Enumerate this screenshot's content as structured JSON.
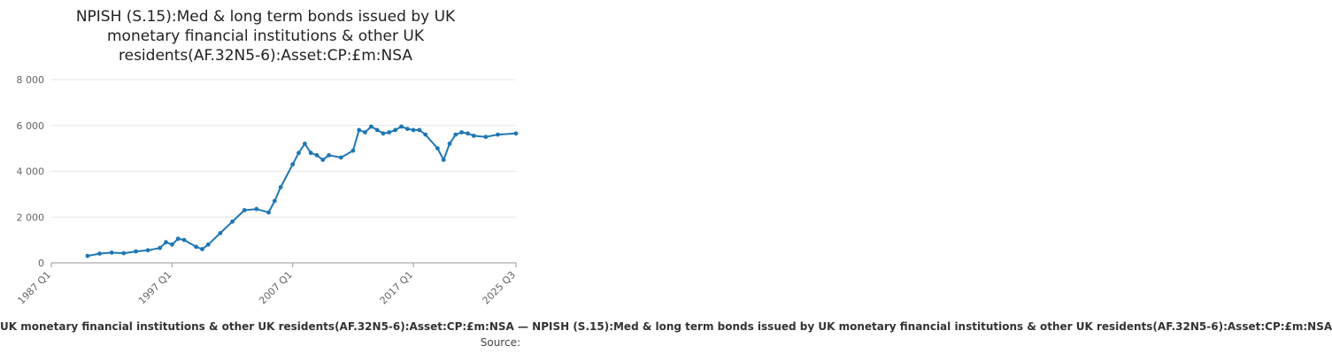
{
  "chart_data": {
    "type": "line",
    "title_lines": [
      "NPISH (S.15):Med & long term bonds issued by UK",
      "monetary financial institutions & other UK",
      "residents(AF.32N5-6):Asset:CP:£m:NSA"
    ],
    "xlabel": "",
    "ylabel": "",
    "ylim": [
      0,
      8000
    ],
    "y_ticks": [
      0,
      2000,
      4000,
      6000,
      8000
    ],
    "y_tick_labels": [
      "0",
      "2 000",
      "4 000",
      "6 000",
      "8 000"
    ],
    "xlim": [
      "1987 Q1",
      "2025 Q3"
    ],
    "x_ticks": [
      "1987 Q1",
      "1997 Q1",
      "2007 Q1",
      "2017 Q1",
      "2025 Q3"
    ],
    "grid": "horizontal",
    "series_color": "#1f77b4",
    "series": [
      {
        "x": [
          "1990 Q1",
          "1991 Q1",
          "1992 Q1",
          "1993 Q1",
          "1994 Q1",
          "1995 Q1",
          "1996 Q1",
          "1996 Q3",
          "1997 Q1",
          "1997 Q3",
          "1998 Q1",
          "1999 Q1",
          "1999 Q3",
          "2000 Q1",
          "2001 Q1",
          "2002 Q1",
          "2003 Q1",
          "2004 Q1",
          "2005 Q1",
          "2005 Q3",
          "2006 Q1",
          "2007 Q1",
          "2007 Q3",
          "2008 Q1",
          "2008 Q3",
          "2009 Q1",
          "2009 Q3",
          "2010 Q1",
          "2011 Q1",
          "2012 Q1",
          "2012 Q3",
          "2013 Q1",
          "2013 Q3",
          "2014 Q1",
          "2014 Q3",
          "2015 Q1",
          "2015 Q3",
          "2016 Q1",
          "2016 Q3",
          "2017 Q1",
          "2017 Q3",
          "2018 Q1",
          "2019 Q1",
          "2019 Q3",
          "2020 Q1",
          "2020 Q3",
          "2021 Q1",
          "2021 Q3",
          "2022 Q1",
          "2023 Q1",
          "2024 Q1",
          "2025 Q3"
        ],
        "values": [
          300,
          400,
          450,
          420,
          500,
          550,
          650,
          900,
          800,
          1050,
          1000,
          700,
          600,
          800,
          1300,
          1800,
          2300,
          2350,
          2200,
          2700,
          3300,
          4300,
          4800,
          5200,
          4800,
          4700,
          4500,
          4700,
          4600,
          4900,
          5800,
          5700,
          5950,
          5800,
          5650,
          5700,
          5800,
          5950,
          5850,
          5800,
          5800,
          5600,
          5000,
          4500,
          5200,
          5600,
          5700,
          5650,
          5550,
          5500,
          5600,
          5650
        ]
      }
    ]
  },
  "footer": {
    "series_text": "UK monetary financial institutions & other UK residents(AF.32N5-6):Asset:CP:£m:NSA — NPISH (S.15):Med & long term bonds issued by UK monetary financial institutions & other UK residents(AF.32N5-6):Asset:CP:£m:NSA",
    "source_text": "Source:"
  }
}
